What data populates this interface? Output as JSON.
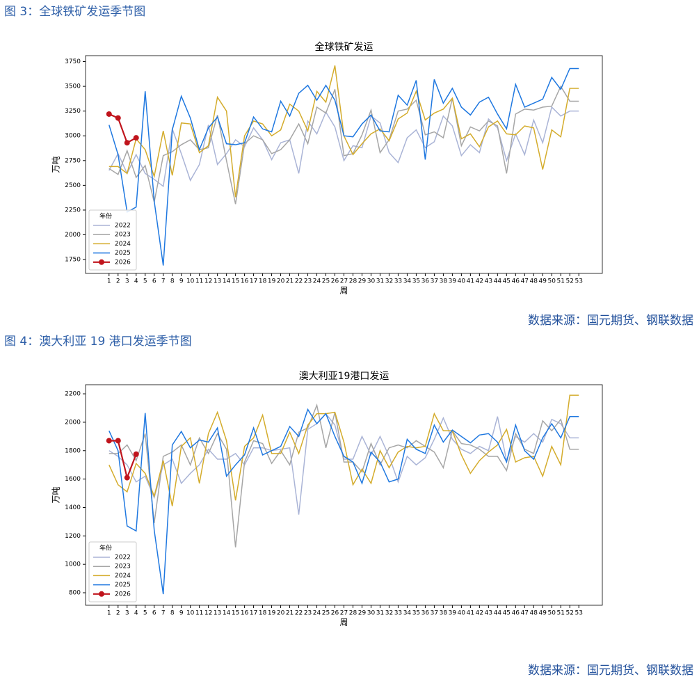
{
  "captions": [
    "图 3：全球铁矿发运季节图",
    "图 4：澳大利亚 19 港口发运季节图"
  ],
  "sources": [
    "数据来源：国元期货、钢联数据",
    "数据来源：国元期货、钢联数据"
  ],
  "chart_data": [
    {
      "type": "line",
      "title": "全球铁矿发运",
      "x_label": "周",
      "y_label": "万吨",
      "legend_title": "年份",
      "legend": "lower left",
      "grid": false,
      "x": [
        1,
        2,
        3,
        4,
        5,
        6,
        7,
        8,
        9,
        10,
        11,
        12,
        13,
        14,
        15,
        16,
        17,
        18,
        19,
        20,
        21,
        22,
        23,
        24,
        25,
        26,
        27,
        28,
        29,
        30,
        31,
        32,
        33,
        34,
        35,
        36,
        37,
        38,
        39,
        40,
        41,
        42,
        43,
        44,
        45,
        46,
        47,
        48,
        49,
        50,
        51,
        52,
        53
      ],
      "xlim": [
        -1.6,
        55.6
      ],
      "xticks": [
        1,
        2,
        3,
        4,
        5,
        6,
        7,
        8,
        9,
        10,
        11,
        12,
        13,
        14,
        15,
        16,
        17,
        18,
        19,
        20,
        21,
        22,
        23,
        24,
        25,
        26,
        27,
        28,
        29,
        30,
        31,
        32,
        33,
        34,
        35,
        36,
        37,
        38,
        39,
        40,
        41,
        42,
        43,
        44,
        45,
        46,
        47,
        48,
        49,
        50,
        51,
        52,
        53
      ],
      "ylim": [
        1610,
        3810
      ],
      "yticks": [
        1750,
        2000,
        2250,
        2500,
        2750,
        3000,
        3250,
        3500,
        3750
      ],
      "series": [
        {
          "name": "2022",
          "color": "#aab4d6",
          "values": [
            2650,
            2820,
            2620,
            2810,
            2620,
            2560,
            2490,
            3070,
            2820,
            2550,
            2710,
            3110,
            2710,
            2820,
            2960,
            2890,
            3080,
            2960,
            2760,
            2930,
            2960,
            2620,
            3150,
            3020,
            3240,
            3090,
            2750,
            2900,
            2880,
            3200,
            3130,
            2830,
            2730,
            2980,
            3060,
            2880,
            2940,
            3200,
            3100,
            2800,
            2910,
            2830,
            3170,
            3080,
            2750,
            3020,
            2810,
            3160,
            2930,
            3290,
            3200,
            3250,
            3250
          ]
        },
        {
          "name": "2023",
          "color": "#a6a6a6",
          "values": [
            2670,
            2610,
            2850,
            2580,
            2700,
            2330,
            2800,
            2840,
            2910,
            2960,
            2860,
            2880,
            3210,
            2750,
            2310,
            2920,
            3000,
            2960,
            2820,
            2860,
            2960,
            3120,
            2920,
            3290,
            3230,
            3470,
            2800,
            2820,
            3010,
            3260,
            2830,
            2960,
            3250,
            3270,
            3360,
            3010,
            3040,
            2980,
            3380,
            2900,
            3090,
            3050,
            3150,
            3100,
            2620,
            3220,
            3270,
            3260,
            3290,
            3300,
            3500,
            3350,
            3350
          ]
        },
        {
          "name": "2024",
          "color": "#d4ac2c",
          "values": [
            2690,
            2690,
            2620,
            2970,
            2860,
            2590,
            3050,
            2600,
            3130,
            3120,
            2830,
            2900,
            3390,
            3250,
            2380,
            3000,
            3150,
            3120,
            3000,
            3060,
            3320,
            3250,
            3050,
            3450,
            3340,
            3710,
            3000,
            2810,
            2920,
            3020,
            3070,
            2950,
            3170,
            3230,
            3450,
            3160,
            3230,
            3270,
            3380,
            2970,
            3020,
            2890,
            3090,
            3150,
            3020,
            3010,
            3100,
            3080,
            2660,
            3060,
            2990,
            3480,
            3480
          ]
        },
        {
          "name": "2025",
          "color": "#1f78e0",
          "values": [
            3110,
            2810,
            2230,
            2280,
            3450,
            2340,
            1690,
            3060,
            3400,
            3180,
            2860,
            3080,
            3190,
            2920,
            2910,
            2930,
            3190,
            3070,
            3040,
            3350,
            3200,
            3430,
            3510,
            3360,
            3510,
            3360,
            3000,
            2990,
            3120,
            3210,
            3050,
            3040,
            3410,
            3310,
            3560,
            2760,
            3570,
            3330,
            3480,
            3290,
            3210,
            3340,
            3390,
            3220,
            3070,
            3520,
            3290,
            3330,
            3370,
            3590,
            3470,
            3680,
            3680
          ]
        },
        {
          "name": "2026",
          "color": "#c0141c",
          "marker": "o",
          "values": [
            3220,
            3180,
            2930,
            2980,
            null,
            null,
            null,
            null,
            null,
            null,
            null,
            null,
            null,
            null,
            null,
            null,
            null,
            null,
            null,
            null,
            null,
            null,
            null,
            null,
            null,
            null,
            null,
            null,
            null,
            null,
            null,
            null,
            null,
            null,
            null,
            null,
            null,
            null,
            null,
            null,
            null,
            null,
            null,
            null,
            null,
            null,
            null,
            null,
            null,
            null,
            null,
            null,
            null
          ]
        }
      ]
    },
    {
      "type": "line",
      "title": "澳大利亚19港口发运",
      "x_label": "周",
      "y_label": "万吨",
      "legend_title": "年份",
      "legend": "lower left",
      "grid": false,
      "x": [
        1,
        2,
        3,
        4,
        5,
        6,
        7,
        8,
        9,
        10,
        11,
        12,
        13,
        14,
        15,
        16,
        17,
        18,
        19,
        20,
        21,
        22,
        23,
        24,
        25,
        26,
        27,
        28,
        29,
        30,
        31,
        32,
        33,
        34,
        35,
        36,
        37,
        38,
        39,
        40,
        41,
        42,
        43,
        44,
        45,
        46,
        47,
        48,
        49,
        50,
        51,
        52,
        53
      ],
      "xlim": [
        -1.6,
        55.6
      ],
      "xticks": [
        1,
        2,
        3,
        4,
        5,
        6,
        7,
        8,
        9,
        10,
        11,
        12,
        13,
        14,
        15,
        16,
        17,
        18,
        19,
        20,
        21,
        22,
        23,
        24,
        25,
        26,
        27,
        28,
        29,
        30,
        31,
        32,
        33,
        34,
        35,
        36,
        37,
        38,
        39,
        40,
        41,
        42,
        43,
        44,
        45,
        46,
        47,
        48,
        49,
        50,
        51,
        52,
        53
      ],
      "ylim": [
        712,
        2264
      ],
      "yticks": [
        800,
        1000,
        1200,
        1400,
        1600,
        1800,
        2000,
        2200
      ],
      "series": [
        {
          "name": "2022",
          "color": "#aab4d6",
          "values": [
            1800,
            1760,
            1700,
            1580,
            1620,
            1470,
            1700,
            1740,
            1570,
            1640,
            1700,
            1810,
            1740,
            1740,
            1780,
            1700,
            1820,
            1820,
            1800,
            1810,
            1820,
            1350,
            1950,
            1990,
            2060,
            1980,
            1740,
            1740,
            1900,
            1770,
            1900,
            1760,
            1580,
            1760,
            1700,
            1750,
            1880,
            2030,
            1880,
            1810,
            1780,
            1830,
            1800,
            2040,
            1730,
            1900,
            1860,
            1920,
            1860,
            2020,
            1990,
            1890,
            1890
          ]
        },
        {
          "name": "2023",
          "color": "#a6a6a6",
          "values": [
            1780,
            1780,
            1840,
            1730,
            1920,
            1290,
            1760,
            1790,
            1840,
            1700,
            1890,
            1780,
            1920,
            1810,
            1120,
            1720,
            1870,
            1850,
            1710,
            1800,
            1700,
            1930,
            1960,
            2120,
            1820,
            2070,
            1720,
            1720,
            1650,
            1850,
            1700,
            1820,
            1840,
            1820,
            1870,
            1830,
            1790,
            1680,
            1940,
            1850,
            1840,
            1810,
            1760,
            1760,
            1660,
            1920,
            1810,
            1780,
            2010,
            1940,
            2020,
            1810,
            1810
          ]
        },
        {
          "name": "2024",
          "color": "#d4ac2c",
          "values": [
            1700,
            1560,
            1510,
            1710,
            1640,
            1480,
            1730,
            1410,
            1830,
            1890,
            1570,
            1920,
            2070,
            1870,
            1450,
            1830,
            1890,
            2050,
            1780,
            1780,
            1930,
            1780,
            1980,
            2060,
            2060,
            2070,
            1860,
            1560,
            1670,
            1570,
            1800,
            1680,
            1790,
            1830,
            1820,
            1830,
            2060,
            1940,
            1940,
            1770,
            1640,
            1730,
            1790,
            1840,
            1950,
            1720,
            1750,
            1760,
            1620,
            1830,
            1700,
            2190,
            2190
          ]
        },
        {
          "name": "2025",
          "color": "#1f78e0",
          "values": [
            1940,
            1800,
            1270,
            1235,
            2065,
            1240,
            790,
            1840,
            1935,
            1820,
            1875,
            1860,
            1960,
            1620,
            1700,
            1770,
            1960,
            1770,
            1800,
            1830,
            1970,
            1900,
            2090,
            1990,
            2060,
            1900,
            1760,
            1720,
            1570,
            1790,
            1720,
            1580,
            1600,
            1880,
            1810,
            1780,
            1980,
            1860,
            1945,
            1900,
            1855,
            1910,
            1920,
            1860,
            1720,
            1980,
            1800,
            1740,
            1890,
            1990,
            1890,
            2040,
            2040
          ]
        },
        {
          "name": "2026",
          "color": "#c0141c",
          "marker": "o",
          "values": [
            1870,
            1870,
            1610,
            1775,
            null,
            null,
            null,
            null,
            null,
            null,
            null,
            null,
            null,
            null,
            null,
            null,
            null,
            null,
            null,
            null,
            null,
            null,
            null,
            null,
            null,
            null,
            null,
            null,
            null,
            null,
            null,
            null,
            null,
            null,
            null,
            null,
            null,
            null,
            null,
            null,
            null,
            null,
            null,
            null,
            null,
            null,
            null,
            null,
            null,
            null,
            null,
            null,
            null
          ]
        }
      ]
    }
  ]
}
